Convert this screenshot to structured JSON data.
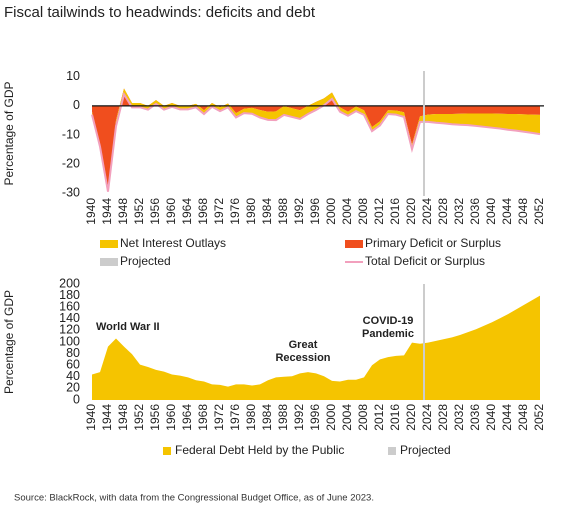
{
  "title": "Fiscal tailwinds to headwinds: deficits and debt",
  "source": "Source: BlackRock, with data from the Congressional Budget Office, as of June 2023.",
  "chart_data": [
    {
      "type": "area",
      "ylabel": "Percentage of GDP",
      "x": [
        1940,
        1942,
        1944,
        1946,
        1948,
        1950,
        1952,
        1954,
        1956,
        1958,
        1960,
        1962,
        1964,
        1966,
        1968,
        1970,
        1972,
        1974,
        1976,
        1978,
        1980,
        1982,
        1984,
        1986,
        1988,
        1990,
        1992,
        1994,
        1996,
        1998,
        2000,
        2002,
        2004,
        2006,
        2008,
        2010,
        2012,
        2014,
        2016,
        2018,
        2020,
        2022,
        2024,
        2026,
        2028,
        2030,
        2032,
        2034,
        2036,
        2038,
        2040,
        2042,
        2044,
        2046,
        2048,
        2050,
        2052
      ],
      "xlim": [
        1939,
        2053
      ],
      "xticks": [
        1940,
        1944,
        1948,
        1952,
        1956,
        1960,
        1964,
        1968,
        1972,
        1976,
        1980,
        1984,
        1988,
        1992,
        1996,
        2000,
        2004,
        2008,
        2012,
        2016,
        2020,
        2024,
        2028,
        2032,
        2036,
        2040,
        2044,
        2048,
        2052
      ],
      "ylim": [
        -31,
        12
      ],
      "yticks": [
        -30,
        -20,
        -10,
        0,
        10
      ],
      "series": [
        {
          "name": "Net Interest Outlays",
          "color": "#f5c400",
          "mark": "area",
          "sign": -1,
          "values": [
            1,
            1,
            1.5,
            2,
            2,
            1.5,
            1.5,
            1.3,
            1.3,
            1.3,
            1.3,
            1.2,
            1.2,
            1.2,
            1.3,
            1.3,
            1.3,
            1.3,
            1.5,
            1.5,
            2,
            2.6,
            2.8,
            3,
            3,
            3,
            3,
            2.8,
            2.8,
            2.4,
            2.2,
            1.5,
            1.4,
            1.6,
            1.6,
            1.4,
            1.4,
            1.3,
            1.4,
            1.6,
            1.6,
            1.9,
            2.5,
            3,
            3.2,
            3.5,
            3.8,
            4,
            4.3,
            4.6,
            4.9,
            5.1,
            5.4,
            5.7,
            6,
            6.3,
            6.6
          ]
        },
        {
          "name": "Primary Deficit or Surplus",
          "color": "#f04e1e",
          "mark": "area",
          "sign": 1,
          "values": [
            -2,
            -13,
            -28,
            -5,
            6,
            1,
            1,
            0,
            2,
            0,
            1,
            0,
            0,
            0.7,
            -1.5,
            1,
            -0.5,
            0.8,
            -2.5,
            -1,
            -0.7,
            -1.4,
            -2,
            -1.9,
            -0.1,
            -0.8,
            -1.5,
            0,
            1.4,
            2.6,
            4.6,
            -0.5,
            -2,
            -0.2,
            -1.5,
            -7.3,
            -5.3,
            -1.5,
            -1.6,
            -2.2,
            -13.3,
            -3.6,
            -3,
            -2.8,
            -2.8,
            -2.8,
            -2.7,
            -2.6,
            -2.6,
            -2.6,
            -2.6,
            -2.7,
            -2.8,
            -2.8,
            -2.9,
            -3,
            -3.1
          ]
        },
        {
          "name": "Total Deficit or Surplus",
          "color": "#f2a0bd",
          "mark": "line",
          "values": [
            -3,
            -14,
            -29.5,
            -7,
            4,
            -0.5,
            -0.5,
            -1.3,
            0.7,
            -1.3,
            -0.3,
            -1.2,
            -1.2,
            -0.5,
            -2.8,
            -0.3,
            -1.8,
            -0.5,
            -4,
            -2.5,
            -2.7,
            -4,
            -4.8,
            -4.9,
            -3.1,
            -3.8,
            -4.5,
            -2.8,
            -1.4,
            0.2,
            2.4,
            -2,
            -3.4,
            -1.8,
            -3.1,
            -8.7,
            -6.7,
            -2.8,
            -3,
            -3.8,
            -14.9,
            -5.5,
            -5.5,
            -5.8,
            -6,
            -6.3,
            -6.5,
            -6.6,
            -6.9,
            -7.2,
            -7.5,
            -7.8,
            -8.2,
            -8.5,
            -8.9,
            -9.3,
            -9.7
          ]
        }
      ],
      "projection": {
        "name": "Projected",
        "x": 2023,
        "color": "#cccccc"
      }
    },
    {
      "type": "area",
      "ylabel": "Percentage of GDP",
      "x": [
        1940,
        1942,
        1944,
        1946,
        1948,
        1950,
        1952,
        1954,
        1956,
        1958,
        1960,
        1962,
        1964,
        1966,
        1968,
        1970,
        1972,
        1974,
        1976,
        1978,
        1980,
        1982,
        1984,
        1986,
        1988,
        1990,
        1992,
        1994,
        1996,
        1998,
        2000,
        2002,
        2004,
        2006,
        2008,
        2010,
        2012,
        2014,
        2016,
        2018,
        2020,
        2022,
        2024,
        2026,
        2028,
        2030,
        2032,
        2034,
        2036,
        2038,
        2040,
        2042,
        2044,
        2046,
        2048,
        2050,
        2052
      ],
      "xlim": [
        1939,
        2053
      ],
      "xticks": [
        1940,
        1944,
        1948,
        1952,
        1956,
        1960,
        1964,
        1968,
        1972,
        1976,
        1980,
        1984,
        1988,
        1992,
        1996,
        2000,
        2004,
        2008,
        2012,
        2016,
        2020,
        2024,
        2028,
        2032,
        2036,
        2040,
        2044,
        2048,
        2052
      ],
      "ylim": [
        0,
        200
      ],
      "yticks": [
        0,
        20,
        40,
        60,
        80,
        100,
        120,
        140,
        160,
        180,
        200
      ],
      "series": [
        {
          "name": "Federal Debt Held by the Public",
          "color": "#f5c400",
          "mark": "area",
          "sign": 1,
          "values": [
            44,
            48,
            92,
            106,
            92,
            79,
            61,
            57,
            52,
            49,
            44,
            42,
            39,
            34,
            32,
            27,
            26,
            23,
            27,
            27,
            25,
            27,
            34,
            39,
            40,
            41,
            46,
            48,
            46,
            41,
            33,
            32,
            35,
            35,
            39,
            60,
            70,
            74,
            76,
            77,
            99,
            97,
            99,
            102,
            105,
            108,
            112,
            117,
            122,
            128,
            134,
            141,
            148,
            156,
            164,
            172,
            180
          ]
        }
      ],
      "projection": {
        "name": "Projected",
        "x": 2023,
        "color": "#cccccc"
      },
      "annotations": [
        [
          "World War II"
        ],
        [
          "Great",
          "Recession"
        ],
        [
          "COVID-19",
          "Pandemic"
        ]
      ]
    }
  ]
}
